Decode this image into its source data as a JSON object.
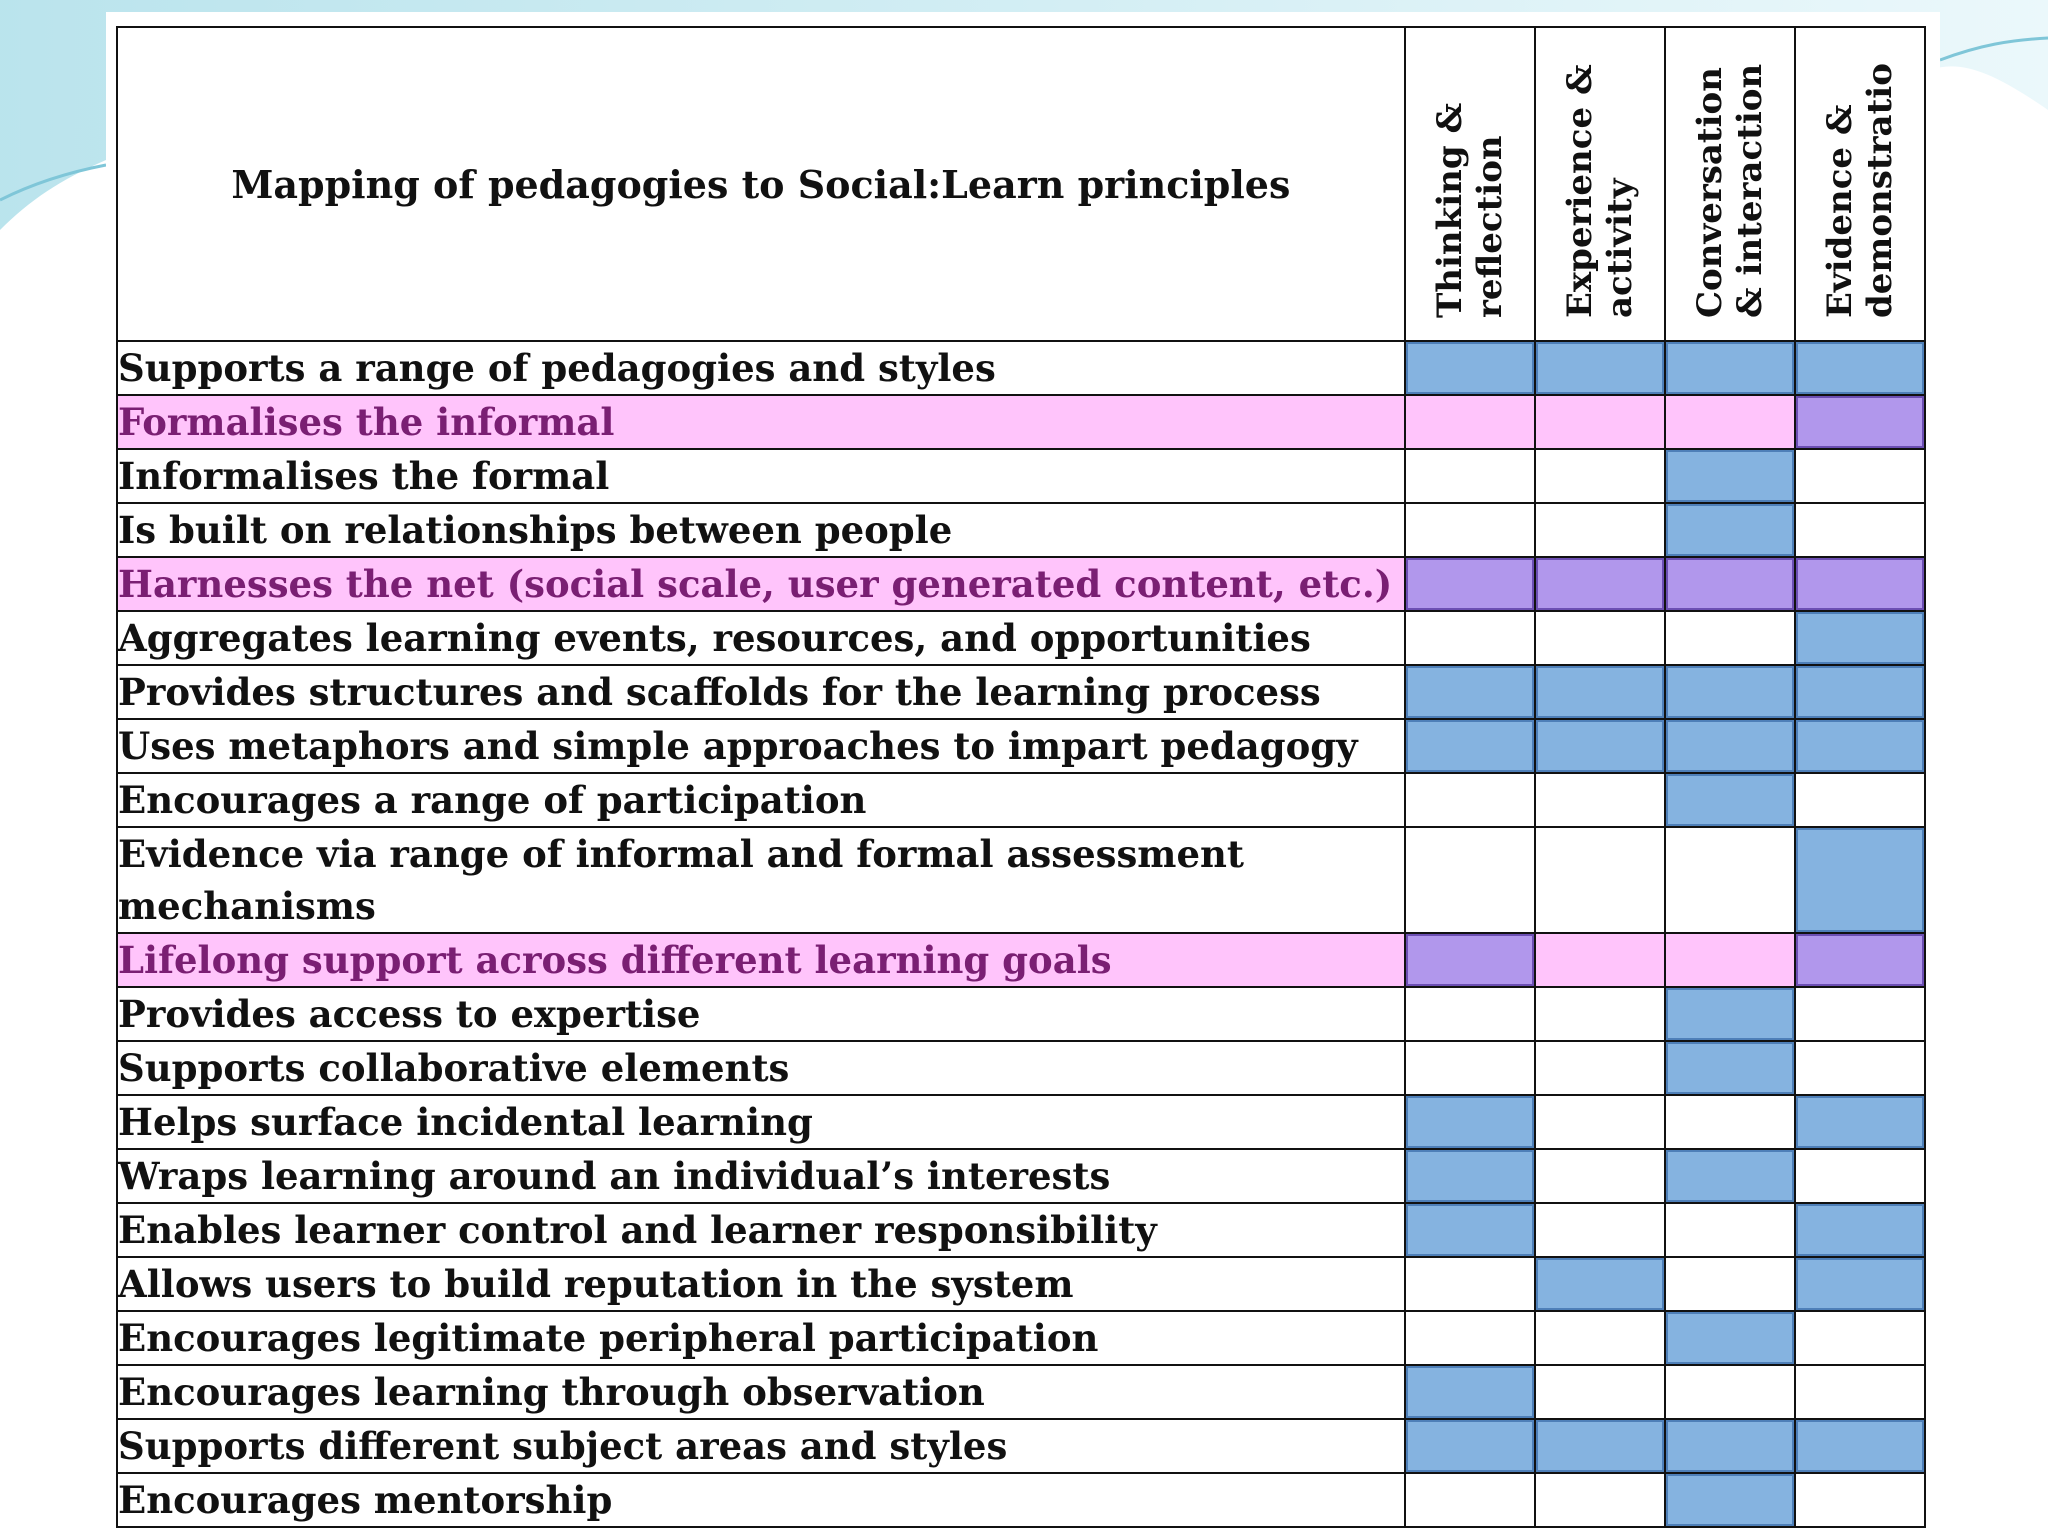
{
  "table": {
    "title": "Mapping of pedagogies to Social:Learn principles",
    "columns": [
      "Thinking &\nreflection",
      "Experience &\nactivity",
      "Conversation\n& interaction",
      "Evidence &\ndemonstratio"
    ],
    "colors": {
      "mapped": "#85b3e0",
      "highlight_mapped": "#b197ec",
      "highlight_row": "#ffc4fb"
    },
    "rows": [
      {
        "label": "Supports a range of pedagogies and styles",
        "marks": [
          1,
          1,
          1,
          1
        ],
        "highlight": false
      },
      {
        "label": "Formalises the informal",
        "marks": [
          0,
          0,
          0,
          1
        ],
        "highlight": true
      },
      {
        "label": "Informalises the formal",
        "marks": [
          0,
          0,
          1,
          0
        ],
        "highlight": false
      },
      {
        "label": "Is built on relationships between people",
        "marks": [
          0,
          0,
          1,
          0
        ],
        "highlight": false
      },
      {
        "label": "Harnesses the net (social scale, user generated content, etc.)",
        "marks": [
          1,
          1,
          1,
          1
        ],
        "highlight": true
      },
      {
        "label": "Aggregates learning events, resources, and opportunities",
        "marks": [
          0,
          0,
          0,
          1
        ],
        "highlight": false
      },
      {
        "label": "Provides structures and scaffolds for the learning process",
        "marks": [
          1,
          1,
          1,
          1
        ],
        "highlight": false
      },
      {
        "label": "Uses metaphors and simple approaches to impart pedagogy",
        "marks": [
          1,
          1,
          1,
          1
        ],
        "highlight": false
      },
      {
        "label": "Encourages a range of participation",
        "marks": [
          0,
          0,
          1,
          0
        ],
        "highlight": false
      },
      {
        "label": "Evidence via range of informal and formal assessment mechanisms",
        "marks": [
          0,
          0,
          0,
          1
        ],
        "highlight": false,
        "tall": true
      },
      {
        "label": "Lifelong support across different learning goals",
        "marks": [
          1,
          0,
          0,
          1
        ],
        "highlight": true
      },
      {
        "label": "Provides access to expertise",
        "marks": [
          0,
          0,
          1,
          0
        ],
        "highlight": false
      },
      {
        "label": "Supports collaborative elements",
        "marks": [
          0,
          0,
          1,
          0
        ],
        "highlight": false
      },
      {
        "label": "Helps surface incidental learning",
        "marks": [
          1,
          0,
          0,
          1
        ],
        "highlight": false
      },
      {
        "label": "Wraps learning around an individual’s interests",
        "marks": [
          1,
          0,
          1,
          0
        ],
        "highlight": false
      },
      {
        "label": "Enables learner control and learner responsibility",
        "marks": [
          1,
          0,
          0,
          1
        ],
        "highlight": false
      },
      {
        "label": "Allows users to build reputation in the system",
        "marks": [
          0,
          1,
          0,
          1
        ],
        "highlight": false
      },
      {
        "label": "Encourages legitimate peripheral participation",
        "marks": [
          0,
          0,
          1,
          0
        ],
        "highlight": false
      },
      {
        "label": "Encourages learning through observation",
        "marks": [
          1,
          0,
          0,
          0
        ],
        "highlight": false
      },
      {
        "label": "Supports different subject areas and styles",
        "marks": [
          1,
          1,
          1,
          1
        ],
        "highlight": false
      },
      {
        "label": "Encourages mentorship",
        "marks": [
          0,
          0,
          1,
          0
        ],
        "highlight": false
      }
    ]
  }
}
